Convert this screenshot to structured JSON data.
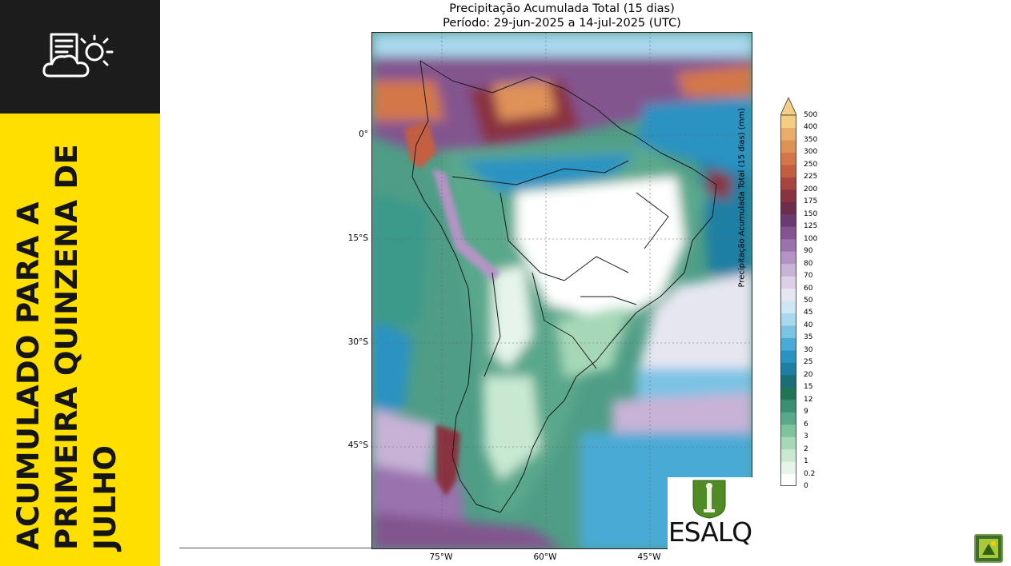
{
  "sidebar": {
    "title_lines": [
      "ACUMULADO PARA A",
      "PRIMEIRA QUINZENA DE",
      "JULHO"
    ],
    "icon": "weather-report-icon",
    "colors": {
      "dark": "#1c1c1c",
      "accent": "#ffdf00"
    }
  },
  "map": {
    "title": "Precipitação Acumulada Total (15 dias)",
    "period": "Período: 29-jun-2025 a 14-jul-2025 (UTC)",
    "lat_labels": [
      "0°",
      "15°S",
      "30°S",
      "45°S"
    ],
    "lon_labels": [
      "75°W",
      "60°W",
      "45°W"
    ]
  },
  "colorbar": {
    "label": "Precipitação Acumulada Total (15 dias) (mm)",
    "ticks": [
      "500",
      "400",
      "350",
      "300",
      "250",
      "225",
      "200",
      "175",
      "150",
      "125",
      "100",
      "90",
      "80",
      "70",
      "60",
      "50",
      "45",
      "40",
      "35",
      "30",
      "25",
      "20",
      "15",
      "12",
      "9",
      "6",
      "3",
      "2",
      "1",
      "0.2",
      "0"
    ],
    "colors": [
      "#ffffff",
      "#e6f4ea",
      "#c8e8d2",
      "#a6d8b8",
      "#7fc39c",
      "#5aa88c",
      "#3b8f72",
      "#1f7556",
      "#1a6e78",
      "#1f7fa3",
      "#2b93c2",
      "#4aaad6",
      "#7cc2e4",
      "#a9d7ee",
      "#cfe7f5",
      "#e6e6f1",
      "#dcd0e6",
      "#c8b2d6",
      "#b394c4",
      "#9a72ae",
      "#83548f",
      "#6b3a72",
      "#6e2d4b",
      "#8a3340",
      "#a94540",
      "#c45e42",
      "#d3774a",
      "#df9258",
      "#e9ac6a",
      "#f5ce84"
    ]
  },
  "logo": {
    "wordmark": "ESALQ"
  }
}
